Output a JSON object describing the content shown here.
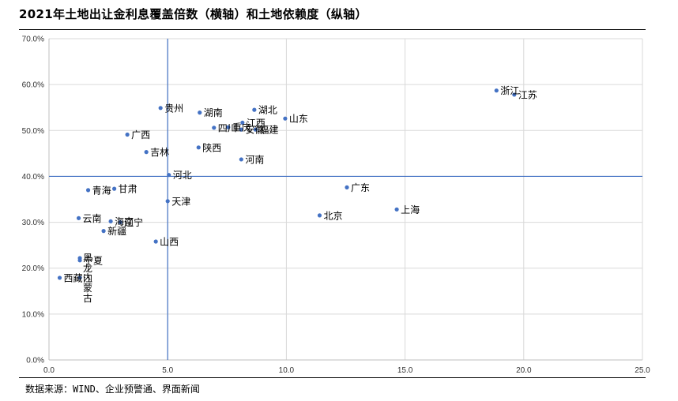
{
  "title": "2021年土地出让金利息覆盖倍数（横轴）和土地依赖度（纵轴）",
  "source": "数据来源：WIND、企业预警通、界面新闻",
  "colors": {
    "point": "#4472c4",
    "refline": "#4472c4",
    "grid": "#d9d9d9"
  },
  "chart_data": {
    "type": "scatter",
    "title": "2021年土地出让金利息覆盖倍数（横轴）和土地依赖度（纵轴）",
    "xlim": [
      0,
      25
    ],
    "ylim": [
      0,
      0.7
    ],
    "xticks": [
      "0.0",
      "5.0",
      "10.0",
      "15.0",
      "20.0",
      "25.0"
    ],
    "yticks": [
      "0.0%",
      "10.0%",
      "20.0%",
      "30.0%",
      "40.0%",
      "50.0%",
      "60.0%",
      "70.0%"
    ],
    "reference_lines": {
      "x": 5.0,
      "y": 0.4
    },
    "grid": true,
    "points": [
      {
        "label": "浙江",
        "x": 18.85,
        "y": 0.587
      },
      {
        "label": "江苏",
        "x": 19.6,
        "y": 0.578
      },
      {
        "label": "贵州",
        "x": 4.7,
        "y": 0.549
      },
      {
        "label": "湖北",
        "x": 8.65,
        "y": 0.545
      },
      {
        "label": "湖南",
        "x": 6.35,
        "y": 0.539
      },
      {
        "label": "山东",
        "x": 9.95,
        "y": 0.526
      },
      {
        "label": "江西",
        "x": 8.15,
        "y": 0.517
      },
      {
        "label": "四川",
        "x": 6.95,
        "y": 0.506
      },
      {
        "label": "重庆",
        "x": 7.55,
        "y": 0.507
      },
      {
        "label": "安徽",
        "x": 8.1,
        "y": 0.502
      },
      {
        "label": "福建",
        "x": 8.7,
        "y": 0.502
      },
      {
        "label": "广西",
        "x": 3.3,
        "y": 0.491
      },
      {
        "label": "陕西",
        "x": 6.3,
        "y": 0.463
      },
      {
        "label": "吉林",
        "x": 4.1,
        "y": 0.453
      },
      {
        "label": "河南",
        "x": 8.1,
        "y": 0.437
      },
      {
        "label": "河北",
        "x": 5.05,
        "y": 0.403
      },
      {
        "label": "广东",
        "x": 12.55,
        "y": 0.376
      },
      {
        "label": "青海",
        "x": 1.65,
        "y": 0.37
      },
      {
        "label": "甘肃",
        "x": 2.75,
        "y": 0.373
      },
      {
        "label": "天津",
        "x": 5.0,
        "y": 0.346
      },
      {
        "label": "上海",
        "x": 14.65,
        "y": 0.328
      },
      {
        "label": "北京",
        "x": 11.4,
        "y": 0.315
      },
      {
        "label": "云南",
        "x": 1.25,
        "y": 0.309
      },
      {
        "label": "海南",
        "x": 2.6,
        "y": 0.302
      },
      {
        "label": "辽宁",
        "x": 3.0,
        "y": 0.3
      },
      {
        "label": "新疆",
        "x": 2.3,
        "y": 0.281
      },
      {
        "label": "山西",
        "x": 4.5,
        "y": 0.258
      },
      {
        "label": "黑龙江",
        "x": 1.3,
        "y": 0.222
      },
      {
        "label": "宁夏",
        "x": 1.3,
        "y": 0.217
      },
      {
        "label": "西藏",
        "x": 0.45,
        "y": 0.179
      },
      {
        "label": "内蒙古",
        "x": 1.3,
        "y": 0.179
      }
    ]
  }
}
